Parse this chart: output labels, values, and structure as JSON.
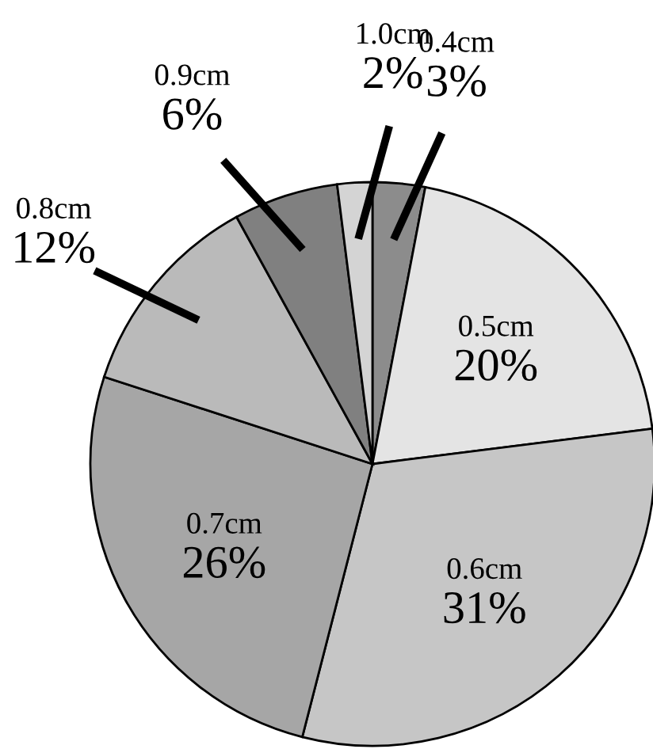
{
  "chart_data": {
    "type": "pie",
    "categories": [
      "0.4cm",
      "0.5cm",
      "0.6cm",
      "0.7cm",
      "0.8cm",
      "0.9cm",
      "1.0cm"
    ],
    "values": [
      3,
      20,
      31,
      26,
      12,
      6,
      2
    ],
    "value_labels": [
      "3%",
      "20%",
      "31%",
      "26%",
      "12%",
      "6%",
      "2%"
    ],
    "colors": [
      "#8c8c8c",
      "#e4e4e4",
      "#c6c6c6",
      "#a6a6a6",
      "#bababa",
      "#808080",
      "#d4d4d4"
    ],
    "legend": false
  }
}
